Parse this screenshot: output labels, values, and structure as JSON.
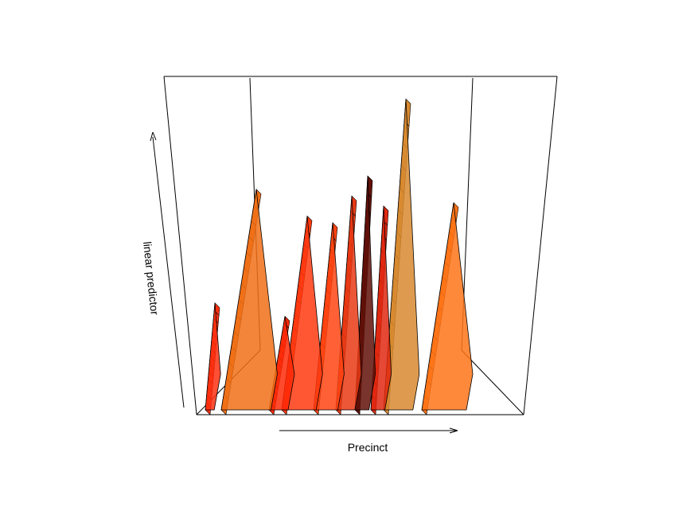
{
  "chart_data": {
    "type": "surface",
    "title": "",
    "xlabel": "Precinct",
    "zlabel": "linear predictor",
    "grid": false,
    "colors": {
      "low": "#ff1a00",
      "mid": "#ff7a10",
      "high": "#ffd070",
      "edge": "#000000"
    },
    "ridges": [
      {
        "position": 0.03,
        "width": 0.03,
        "height": 0.32,
        "color": "#ff3010"
      },
      {
        "position": 0.16,
        "width": 0.11,
        "height": 0.66,
        "color": "#f07018"
      },
      {
        "position": 0.25,
        "width": 0.05,
        "height": 0.28,
        "color": "#ff2a08"
      },
      {
        "position": 0.32,
        "width": 0.08,
        "height": 0.58,
        "color": "#ff3a10"
      },
      {
        "position": 0.4,
        "width": 0.06,
        "height": 0.56,
        "color": "#ff4412"
      },
      {
        "position": 0.46,
        "width": 0.05,
        "height": 0.64,
        "color": "#e83a14"
      },
      {
        "position": 0.51,
        "width": 0.04,
        "height": 0.7,
        "color": "#601008"
      },
      {
        "position": 0.56,
        "width": 0.04,
        "height": 0.61,
        "color": "#e02810"
      },
      {
        "position": 0.63,
        "width": 0.07,
        "height": 0.93,
        "color": "#d88a30"
      },
      {
        "position": 0.78,
        "width": 0.1,
        "height": 0.62,
        "color": "#ff7418"
      }
    ]
  }
}
